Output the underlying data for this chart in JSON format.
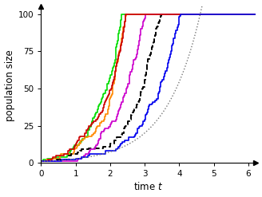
{
  "title": "",
  "xlabel": "time $t$",
  "ylabel": "population size",
  "xlim": [
    0,
    6.2
  ],
  "ylim": [
    -1,
    105
  ],
  "xticks": [
    0,
    1,
    2,
    3,
    4,
    5,
    6
  ],
  "yticks": [
    0,
    25,
    50,
    75,
    100
  ],
  "background_color": "#ffffff",
  "curves": [
    {
      "color": "#00dd00",
      "lw": 1.2,
      "ls": "solid",
      "r": 1.75,
      "seed": 3
    },
    {
      "color": "#ff8800",
      "lw": 1.2,
      "ls": "solid",
      "r": 1.62,
      "seed": 11
    },
    {
      "color": "#000000",
      "lw": 1.4,
      "ls": "dashed",
      "r": 1.5,
      "seed": 0
    },
    {
      "color": "#cc00cc",
      "lw": 1.2,
      "ls": "solid",
      "r": 1.48,
      "seed": 17
    },
    {
      "color": "#cc0000",
      "lw": 1.2,
      "ls": "solid",
      "r": 1.4,
      "seed": 22
    },
    {
      "color": "#0000ee",
      "lw": 1.2,
      "ls": "solid",
      "r": 1.2,
      "seed": 7
    },
    {
      "color": "#777777",
      "lw": 1.0,
      "ls": "dotted",
      "r": 1.0,
      "seed": 0
    }
  ],
  "figsize": [
    3.28,
    2.47
  ],
  "dpi": 100
}
